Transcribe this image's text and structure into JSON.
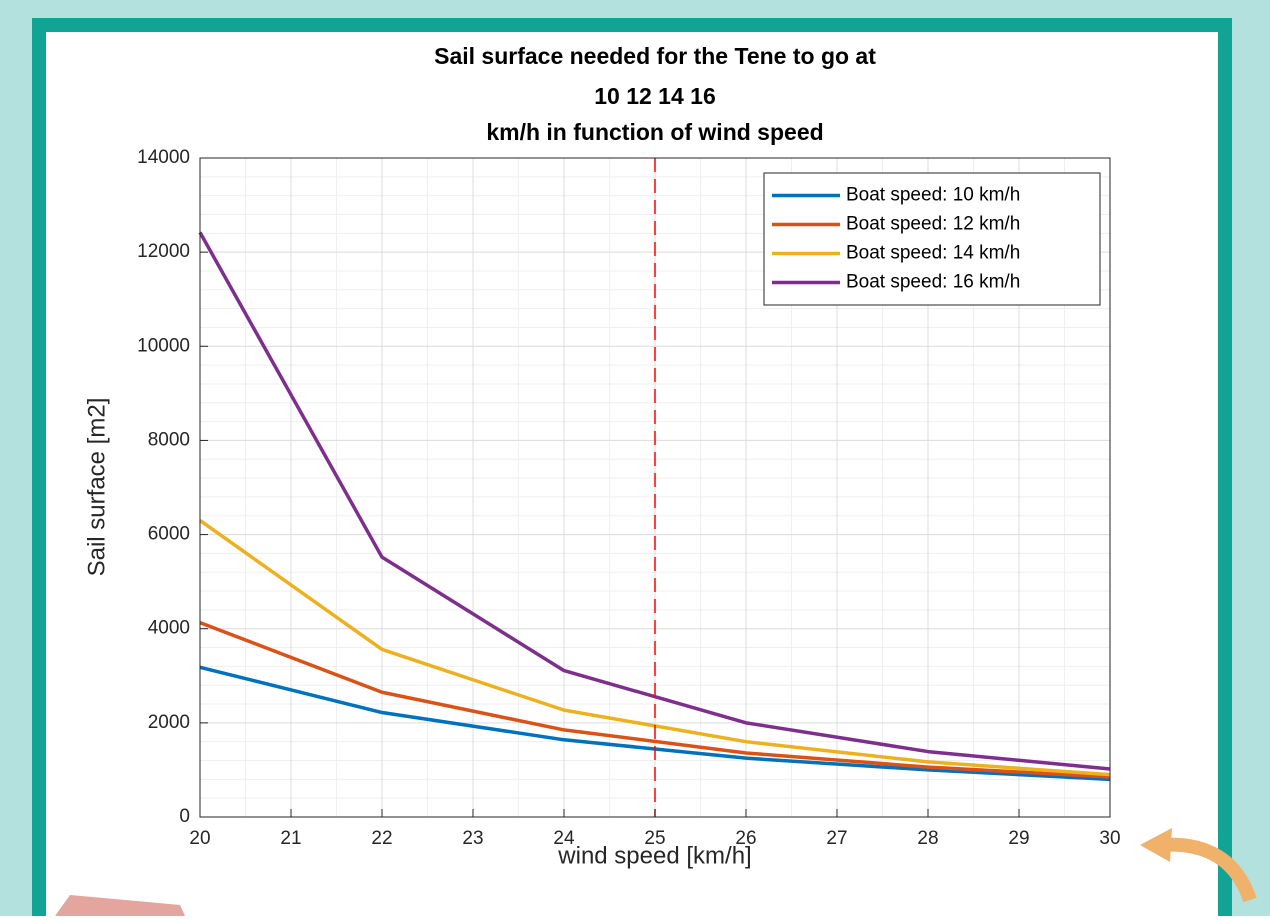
{
  "chart_data": {
    "type": "line",
    "title": [
      "Sail surface needed for the Tene to go at",
      "10  12  14  16",
      "km/h in function of wind speed"
    ],
    "x_label": "wind speed [km/h]",
    "y_label": "Sail surface [m2]",
    "x": [
      20,
      22,
      24,
      26,
      28,
      30
    ],
    "series": [
      {
        "name": "Boat speed: 10 km/h",
        "color": "#0072bd",
        "values": [
          3180,
          2220,
          1640,
          1250,
          1000,
          800
        ]
      },
      {
        "name": "Boat speed: 12 km/h",
        "color": "#d95319",
        "values": [
          4130,
          2650,
          1850,
          1360,
          1060,
          850
        ]
      },
      {
        "name": "Boat speed: 14 km/h",
        "color": "#edb120",
        "values": [
          6300,
          3560,
          2270,
          1600,
          1170,
          900
        ]
      },
      {
        "name": "Boat speed: 16 km/h",
        "color": "#7e2f8e",
        "values": [
          12420,
          5520,
          3110,
          2000,
          1390,
          1020
        ]
      }
    ],
    "vline": {
      "x": 25,
      "color": "#ff0000",
      "dashed": true
    },
    "xlim": [
      20,
      30
    ],
    "xticks": [
      20,
      21,
      22,
      23,
      24,
      25,
      26,
      27,
      28,
      29,
      30
    ],
    "ylim": [
      0,
      14000
    ],
    "yticks": [
      0,
      2000,
      4000,
      6000,
      8000,
      10000,
      12000,
      14000
    ],
    "grid": true,
    "minor_grid": true,
    "legend": "top-right"
  }
}
